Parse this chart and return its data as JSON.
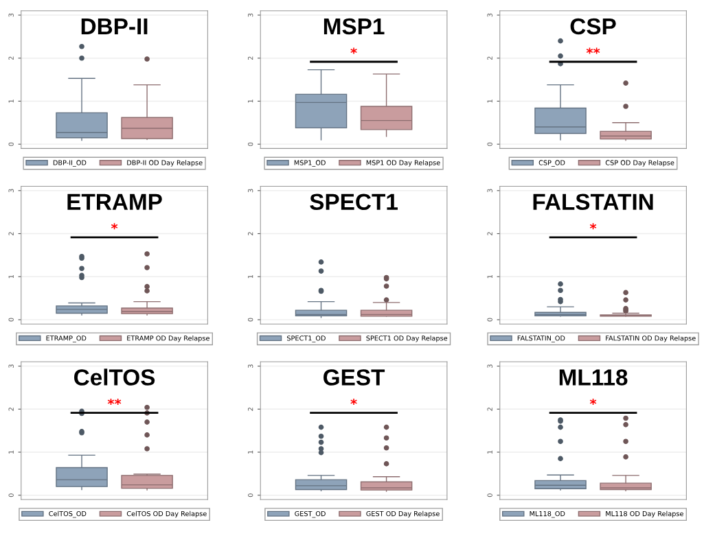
{
  "chart_data": [
    {
      "type": "box",
      "title": "DBP-II",
      "categories": [
        null
      ],
      "ylim": [
        -0.1,
        3.1
      ],
      "yticks": [
        0,
        1,
        2,
        3
      ],
      "grid": "y",
      "legend": "bottom",
      "series": [
        {
          "name": "DBP-II_OD",
          "color": "#8ea3b9",
          "boxes": [
            {
              "low": 0.08,
              "q1": 0.15,
              "median": 0.27,
              "q3": 0.73,
              "high": 1.53,
              "outliers": [
                2.0,
                2.27
              ]
            }
          ]
        },
        {
          "name": "DBP-II OD Day Relapse",
          "color": "#c99c9e",
          "boxes": [
            {
              "low": 0.1,
              "q1": 0.13,
              "median": 0.37,
              "q3": 0.62,
              "high": 1.38,
              "outliers": [
                1.98
              ]
            }
          ]
        }
      ]
    },
    {
      "type": "box",
      "title": "MSP1",
      "annotations": [
        "*"
      ],
      "categories": [
        null
      ],
      "ylim": [
        -0.1,
        3.1
      ],
      "yticks": [
        0,
        1,
        2,
        3
      ],
      "grid": "y",
      "legend": "bottom",
      "series": [
        {
          "name": "MSP1_OD",
          "color": "#8ea3b9",
          "boxes": [
            {
              "low": 0.09,
              "q1": 0.38,
              "median": 0.97,
              "q3": 1.16,
              "high": 1.73
            }
          ]
        },
        {
          "name": "MSP1 OD Day Relapse",
          "color": "#c99c9e",
          "boxes": [
            {
              "low": 0.17,
              "q1": 0.34,
              "median": 0.55,
              "q3": 0.88,
              "high": 1.63
            }
          ]
        }
      ]
    },
    {
      "type": "box",
      "title": "CSP",
      "annotations": [
        "**"
      ],
      "categories": [
        null
      ],
      "ylim": [
        -0.1,
        3.1
      ],
      "yticks": [
        0,
        1,
        2,
        3
      ],
      "grid": "y",
      "legend": "bottom",
      "series": [
        {
          "name": "CSP_OD",
          "color": "#8ea3b9",
          "boxes": [
            {
              "low": 0.09,
              "q1": 0.25,
              "median": 0.4,
              "q3": 0.84,
              "high": 1.38,
              "outliers": [
                1.87,
                2.05,
                2.4
              ]
            }
          ]
        },
        {
          "name": "CSP OD Day Relapse",
          "color": "#c99c9e",
          "boxes": [
            {
              "low": 0.08,
              "q1": 0.12,
              "median": 0.19,
              "q3": 0.3,
              "high": 0.5,
              "outliers": [
                0.88,
                1.42
              ]
            }
          ]
        }
      ]
    },
    {
      "type": "box",
      "title": "ETRAMP",
      "annotations": [
        "*"
      ],
      "categories": [
        null
      ],
      "ylim": [
        -0.1,
        3.1
      ],
      "yticks": [
        0,
        1,
        2,
        3
      ],
      "grid": "y",
      "legend": "bottom",
      "series": [
        {
          "name": "ETRAMP_OD",
          "color": "#8ea3b9",
          "boxes": [
            {
              "low": 0.1,
              "q1": 0.15,
              "median": 0.24,
              "q3": 0.32,
              "high": 0.39,
              "outliers": [
                0.98,
                1.03,
                1.19,
                1.43,
                1.47
              ]
            }
          ]
        },
        {
          "name": "ETRAMP OD Day Relapse",
          "color": "#c99c9e",
          "boxes": [
            {
              "low": 0.1,
              "q1": 0.14,
              "median": 0.19,
              "q3": 0.27,
              "high": 0.42,
              "outliers": [
                0.67,
                0.77,
                1.21,
                1.53
              ]
            }
          ]
        }
      ]
    },
    {
      "type": "box",
      "title": "SPECT1",
      "categories": [
        null
      ],
      "ylim": [
        -0.1,
        3.1
      ],
      "yticks": [
        0,
        1,
        2,
        3
      ],
      "grid": "y",
      "legend": "bottom",
      "series": [
        {
          "name": "SPECT1_OD",
          "color": "#8ea3b9",
          "boxes": [
            {
              "low": 0.04,
              "q1": 0.09,
              "median": 0.12,
              "q3": 0.22,
              "high": 0.42,
              "outliers": [
                0.66,
                0.68,
                1.13,
                1.34
              ]
            }
          ]
        },
        {
          "name": "SPECT1 OD Day Relapse",
          "color": "#c99c9e",
          "boxes": [
            {
              "low": 0.07,
              "q1": 0.08,
              "median": 0.12,
              "q3": 0.22,
              "high": 0.4,
              "outliers": [
                0.46,
                0.78,
                0.95,
                0.98
              ]
            }
          ]
        }
      ]
    },
    {
      "type": "box",
      "title": "FALSTATIN",
      "annotations": [
        "*"
      ],
      "categories": [
        null
      ],
      "ylim": [
        -0.1,
        3.1
      ],
      "yticks": [
        0,
        1,
        2,
        3
      ],
      "grid": "y",
      "legend": "bottom",
      "series": [
        {
          "name": "FALSTATIN_OD",
          "color": "#8ea3b9",
          "boxes": [
            {
              "low": 0.07,
              "q1": 0.09,
              "median": 0.12,
              "q3": 0.17,
              "high": 0.3,
              "outliers": [
                0.42,
                0.47,
                0.68,
                0.83
              ]
            }
          ]
        },
        {
          "name": "FALSTATIN OD Day Relapse",
          "color": "#c99c9e",
          "boxes": [
            {
              "low": 0.07,
              "q1": 0.08,
              "median": 0.09,
              "q3": 0.11,
              "high": 0.15,
              "outliers": [
                0.2,
                0.23,
                0.26,
                0.46,
                0.63
              ]
            }
          ]
        }
      ]
    },
    {
      "type": "box",
      "title": "CelTOS",
      "annotations": [
        "**"
      ],
      "categories": [
        null
      ],
      "ylim": [
        -0.1,
        3.1
      ],
      "yticks": [
        0,
        1,
        2,
        3
      ],
      "grid": "y",
      "legend": "bottom",
      "series": [
        {
          "name": "CelTOS_OD",
          "color": "#8ea3b9",
          "boxes": [
            {
              "low": 0.12,
              "q1": 0.2,
              "median": 0.36,
              "q3": 0.64,
              "high": 0.93,
              "outliers": [
                1.45,
                1.48,
                1.9,
                1.95
              ]
            }
          ]
        },
        {
          "name": "CelTOS OD Day Relapse",
          "color": "#c99c9e",
          "boxes": [
            {
              "low": 0.11,
              "q1": 0.16,
              "median": 0.24,
              "q3": 0.46,
              "high": 0.49,
              "outliers": [
                1.08,
                1.4,
                1.7,
                1.91,
                2.04
              ]
            }
          ]
        }
      ]
    },
    {
      "type": "box",
      "title": "GEST",
      "annotations": [
        "*"
      ],
      "categories": [
        null
      ],
      "ylim": [
        -0.1,
        3.1
      ],
      "yticks": [
        0,
        1,
        2,
        3
      ],
      "grid": "y",
      "legend": "bottom",
      "series": [
        {
          "name": "GEST_OD",
          "color": "#8ea3b9",
          "boxes": [
            {
              "low": 0.09,
              "q1": 0.13,
              "median": 0.22,
              "q3": 0.36,
              "high": 0.46,
              "outliers": [
                0.99,
                1.08,
                1.23,
                1.37,
                1.58
              ]
            }
          ]
        },
        {
          "name": "GEST OD Day Relapse",
          "color": "#c99c9e",
          "boxes": [
            {
              "low": 0.08,
              "q1": 0.12,
              "median": 0.17,
              "q3": 0.31,
              "high": 0.43,
              "outliers": [
                0.73,
                1.1,
                1.33,
                1.58
              ]
            }
          ]
        }
      ]
    },
    {
      "type": "box",
      "title": "ML118",
      "annotations": [
        "*"
      ],
      "categories": [
        null
      ],
      "ylim": [
        -0.1,
        3.1
      ],
      "yticks": [
        0,
        1,
        2,
        3
      ],
      "grid": "y",
      "legend": "bottom",
      "series": [
        {
          "name": "ML118_OD",
          "color": "#8ea3b9",
          "boxes": [
            {
              "low": 0.11,
              "q1": 0.15,
              "median": 0.23,
              "q3": 0.34,
              "high": 0.47,
              "outliers": [
                0.85,
                1.25,
                1.58,
                1.72,
                1.75
              ]
            }
          ]
        },
        {
          "name": "ML118 OD Day Relapse",
          "color": "#c99c9e",
          "boxes": [
            {
              "low": 0.09,
              "q1": 0.13,
              "median": 0.17,
              "q3": 0.28,
              "high": 0.46,
              "outliers": [
                0.89,
                1.25,
                1.64,
                1.79
              ]
            }
          ]
        }
      ]
    }
  ]
}
